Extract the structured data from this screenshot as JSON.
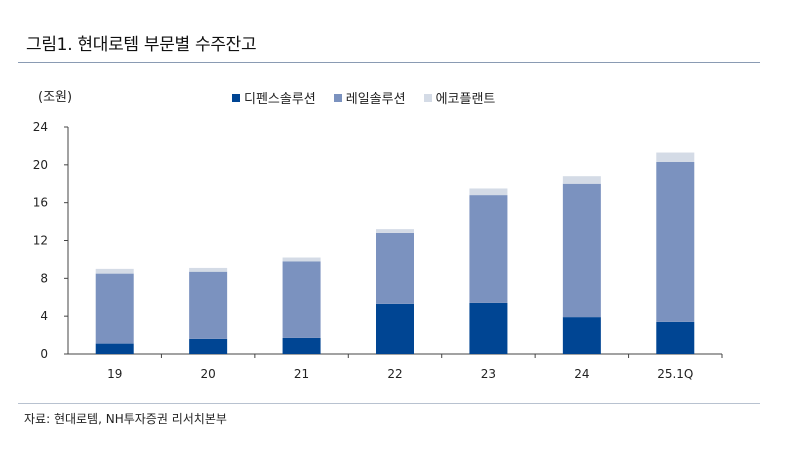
{
  "title": "그림1. 현대로템 부문별 수주잔고",
  "unit_label": "(조원)",
  "source": "자료: 현대로템, NH투자증권 리서치본부",
  "colors": {
    "defense": "#004593",
    "rail": "#7b92bf",
    "eco": "#d4dbe6"
  },
  "chart_data": {
    "type": "bar",
    "stacked": true,
    "categories": [
      "19",
      "20",
      "21",
      "22",
      "23",
      "24",
      "25.1Q"
    ],
    "series": [
      {
        "name": "디펜스솔루션",
        "values": [
          1.1,
          1.6,
          1.7,
          5.3,
          5.4,
          3.9,
          3.4
        ]
      },
      {
        "name": "레일솔루션",
        "values": [
          7.4,
          7.1,
          8.1,
          7.5,
          11.4,
          14.1,
          16.9
        ]
      },
      {
        "name": "에코플랜트",
        "values": [
          0.5,
          0.4,
          0.4,
          0.4,
          0.7,
          0.8,
          1.0
        ]
      }
    ],
    "ylim": [
      0,
      24
    ],
    "yticks": [
      "0",
      "4",
      "8",
      "12",
      "16",
      "20",
      "24"
    ],
    "grid": false,
    "legend": "top"
  }
}
